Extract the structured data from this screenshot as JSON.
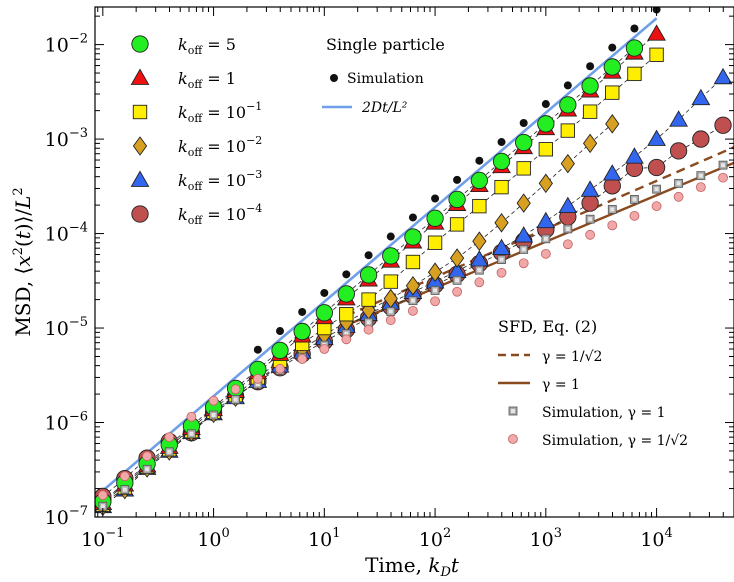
{
  "chart_data": {
    "type": "scatter",
    "title": "",
    "xlabel": "Time, k_D t",
    "ylabel": "MSD, ⟨x²(t)⟩/L²",
    "x_scale": "log",
    "y_scale": "log",
    "xlim": [
      0.085,
      50000
    ],
    "ylim": [
      1e-07,
      0.025
    ],
    "x_ticks": [
      {
        "value": 0.1,
        "base": "10",
        "exp": "−1"
      },
      {
        "value": 1,
        "base": "10",
        "exp": "0"
      },
      {
        "value": 10,
        "base": "10",
        "exp": "1"
      },
      {
        "value": 100,
        "base": "10",
        "exp": "2"
      },
      {
        "value": 1000,
        "base": "10",
        "exp": "3"
      },
      {
        "value": 10000,
        "base": "10",
        "exp": "4"
      }
    ],
    "y_ticks": [
      {
        "value": 1e-07,
        "base": "10",
        "exp": "−7"
      },
      {
        "value": 1e-06,
        "base": "10",
        "exp": "−6"
      },
      {
        "value": 1e-05,
        "base": "10",
        "exp": "−5"
      },
      {
        "value": 0.0001,
        "base": "10",
        "exp": "−4"
      },
      {
        "value": 0.001,
        "base": "10",
        "exp": "−3"
      },
      {
        "value": 0.01,
        "base": "10",
        "exp": "−2"
      }
    ],
    "koff_series": [
      {
        "name": "k_off = 5",
        "label_base": "k",
        "label_sub": "off",
        "label_rest": " = 5",
        "label_exp": "",
        "marker": "circle",
        "color": "#22ee22",
        "x": [
          0.1,
          0.158,
          0.251,
          0.398,
          0.631,
          1,
          1.58,
          2.51,
          3.98,
          6.31,
          10,
          15.8,
          25.1,
          39.8,
          63.1,
          100,
          158,
          251,
          398,
          631,
          1000,
          1580,
          2510,
          3980,
          6310
        ],
        "y": [
          1.45e-07,
          2.3e-07,
          3.65e-07,
          5.8e-07,
          9.2e-07,
          1.45e-06,
          2.3e-06,
          3.65e-06,
          5.8e-06,
          9.2e-06,
          1.45e-05,
          2.3e-05,
          3.65e-05,
          5.8e-05,
          9.2e-05,
          0.000145,
          0.00023,
          0.000365,
          0.00058,
          0.00092,
          0.00145,
          0.0023,
          0.00365,
          0.0058,
          0.0092
        ]
      },
      {
        "name": "k_off = 1",
        "label_base": "k",
        "label_sub": "off",
        "label_rest": " = 1",
        "label_exp": "",
        "marker": "triangle",
        "color": "#ee1111",
        "x": [
          0.1,
          0.158,
          0.251,
          0.398,
          0.631,
          1,
          1.58,
          2.51,
          3.98,
          6.31,
          10,
          15.8,
          25.1,
          39.8,
          63.1,
          100,
          158,
          251,
          398,
          631,
          1000,
          1580,
          2510,
          3980,
          6310,
          10000
        ],
        "y": [
          1.4e-07,
          2.2e-07,
          3.5e-07,
          5.5e-07,
          8.7e-07,
          1.38e-06,
          2.15e-06,
          3.4e-06,
          5.3e-06,
          8.3e-06,
          1.3e-05,
          2.05e-05,
          3.25e-05,
          5.15e-05,
          8.2e-05,
          0.00013,
          0.000205,
          0.000325,
          0.000515,
          0.00082,
          0.0013,
          0.00205,
          0.00325,
          0.00515,
          0.0082,
          0.013
        ]
      },
      {
        "name": "k_off = 10^-1",
        "label_base": "k",
        "label_sub": "off",
        "label_rest": " = 10",
        "label_exp": "−1",
        "marker": "square",
        "color": "#ffee00",
        "x": [
          0.1,
          0.158,
          0.251,
          0.398,
          0.631,
          1,
          1.58,
          2.51,
          3.98,
          6.31,
          10,
          15.8,
          25.1,
          39.8,
          63.1,
          100,
          158,
          251,
          398,
          631,
          1000,
          1580,
          2510,
          3980,
          6310,
          10000
        ],
        "y": [
          1.35e-07,
          2.05e-07,
          3.4e-07,
          5.2e-07,
          8.1e-07,
          1.3e-06,
          1.95e-06,
          3e-06,
          4.5e-06,
          6.8e-06,
          1e-05,
          1.4e-05,
          2e-05,
          3.1e-05,
          5e-05,
          8e-05,
          0.000125,
          0.000195,
          0.00031,
          0.00049,
          0.00078,
          0.00123,
          0.00195,
          0.0031,
          0.0049,
          0.0078
        ]
      },
      {
        "name": "k_off = 10^-2",
        "label_base": "k",
        "label_sub": "off",
        "label_rest": " = 10",
        "label_exp": "−2",
        "marker": "diamond",
        "color": "#d8a020",
        "x": [
          0.1,
          0.158,
          0.251,
          0.398,
          0.631,
          1,
          1.58,
          2.51,
          3.98,
          6.31,
          10,
          15.8,
          25.1,
          39.8,
          63.1,
          100,
          158,
          251,
          398,
          631,
          1000,
          1580,
          2510,
          3980
        ],
        "y": [
          1.3e-07,
          1.95e-07,
          3.3e-07,
          5e-07,
          7.9e-07,
          1.25e-06,
          1.85e-06,
          2.8e-06,
          4.2e-06,
          6e-06,
          8.5e-06,
          1.15e-05,
          1.55e-05,
          2.05e-05,
          2.8e-05,
          3.9e-05,
          5.5e-05,
          8.3e-05,
          0.00013,
          0.00021,
          0.00034,
          0.00055,
          0.0009,
          0.00145
        ]
      },
      {
        "name": "k_off = 10^-3",
        "label_base": "k",
        "label_sub": "off",
        "label_rest": " = 10",
        "label_exp": "−3",
        "marker": "triangle",
        "color": "#3366ee",
        "x": [
          0.1,
          0.158,
          0.251,
          0.398,
          0.631,
          1,
          1.58,
          2.51,
          3.98,
          6.31,
          10,
          15.8,
          25.1,
          39.8,
          63.1,
          100,
          158,
          251,
          398,
          631,
          1000,
          1580,
          2510,
          3980,
          6310,
          10000,
          15800,
          25100,
          39800
        ],
        "y": [
          1.3e-07,
          1.95e-07,
          3.3e-07,
          5e-07,
          7.9e-07,
          1.25e-06,
          1.85e-06,
          2.75e-06,
          4e-06,
          5.6e-06,
          7.8e-06,
          1.05e-05,
          1.4e-05,
          1.85e-05,
          2.4e-05,
          3.1e-05,
          4e-05,
          5.3e-05,
          7e-05,
          9.5e-05,
          0.000135,
          0.000195,
          0.00029,
          0.00043,
          0.00065,
          0.001,
          0.0016,
          0.0027,
          0.0045
        ]
      },
      {
        "name": "k_off = 10^-4",
        "label_base": "k",
        "label_sub": "off",
        "label_rest": " = 10",
        "label_exp": "−4",
        "marker": "circle",
        "color": "#c05050",
        "x": [
          0.1,
          0.158,
          0.251,
          0.398,
          0.631,
          1,
          1.58,
          2.51,
          3.98,
          6.31,
          10,
          15.8,
          25.1,
          39.8,
          63.1,
          100,
          158,
          251,
          398,
          631,
          1000,
          1580,
          2510,
          3980,
          6310,
          10000,
          15800,
          25100,
          39800
        ],
        "y": [
          1.65e-07,
          2.55e-07,
          4.2e-07,
          6.3e-07,
          7.8e-07,
          1.28e-06,
          1.9e-06,
          2.7e-06,
          3.8e-06,
          5.3e-06,
          7.2e-06,
          9.6e-06,
          1.27e-05,
          1.68e-05,
          2.2e-05,
          2.85e-05,
          3.7e-05,
          4.8e-05,
          6.3e-05,
          8.3e-05,
          0.00011,
          0.00015,
          0.00021,
          0.00032,
          0.00049,
          0.0005,
          0.00075,
          0.001,
          0.0014
        ]
      }
    ],
    "single_particle_simulation": {
      "name": "Simulation",
      "color": "#111111",
      "x": [
        2.51,
        3.98,
        6.31,
        10,
        15.8,
        25.1,
        39.8,
        63.1,
        100,
        158,
        251,
        398,
        631,
        1000,
        1580,
        2510,
        3980,
        6310,
        10000
      ],
      "y": [
        5.9e-06,
        9.3e-06,
        1.48e-05,
        2.35e-05,
        3.7e-05,
        5.9e-05,
        9.3e-05,
        0.000148,
        0.000235,
        0.00037,
        0.00059,
        0.00093,
        0.00148,
        0.00235,
        0.0037,
        0.0059,
        0.0093,
        0.0148,
        0.0235
      ]
    },
    "single_particle_line": {
      "name": "2Dt/L²",
      "color": "#6f9fe8",
      "x": [
        0.1,
        10000
      ],
      "y": [
        1.9e-07,
        0.019
      ]
    },
    "sfd_lines": [
      {
        "name": "γ = 1/√2",
        "style": "dashed",
        "color": "#8a4a20",
        "x": [
          15.8,
          50000
        ],
        "y": [
          1.35e-05,
          0.00082
        ]
      },
      {
        "name": "γ = 1",
        "style": "solid",
        "color": "#8a4a20",
        "x": [
          15.8,
          50000
        ],
        "y": [
          1.07e-05,
          0.00056
        ]
      }
    ],
    "sfd_simulation": [
      {
        "name": "Simulation, γ = 1",
        "marker": "small-square",
        "color": "#aaaaaa",
        "x": [
          0.1,
          0.158,
          0.251,
          0.398,
          0.631,
          1,
          1.58,
          2.51,
          3.98,
          6.31,
          10,
          15.8,
          25.1,
          39.8,
          63.1,
          100,
          158,
          251,
          398,
          631,
          1000,
          1580,
          2510,
          3980,
          6310,
          10000,
          15800,
          25100,
          39800
        ],
        "y": [
          1.3e-07,
          1.95e-07,
          3.2e-07,
          4.9e-07,
          7.6e-07,
          1.2e-06,
          1.75e-06,
          2.55e-06,
          3.55e-06,
          4.9e-06,
          6.6e-06,
          8.7e-06,
          1.15e-05,
          1.5e-05,
          1.95e-05,
          2.5e-05,
          3.2e-05,
          4.1e-05,
          5.3e-05,
          6.8e-05,
          8.8e-05,
          0.000112,
          0.000142,
          0.00018,
          0.00023,
          0.000295,
          0.00034,
          0.00041,
          0.00053
        ]
      },
      {
        "name": "Simulation, γ = 1/√2",
        "marker": "small-circle",
        "color": "#f0a8a8",
        "x": [
          0.1,
          0.158,
          0.251,
          0.398,
          0.631,
          1,
          1.58,
          2.51,
          3.98,
          6.31,
          10,
          15.8,
          25.1,
          39.8,
          63.1,
          100,
          158,
          251,
          398,
          631,
          1000,
          1580,
          2510,
          3980,
          6310,
          10000,
          15800,
          25100,
          39800
        ],
        "y": [
          1.7e-07,
          2.7e-07,
          4.4e-07,
          7e-07,
          1.15e-06,
          1.7e-06,
          2.25e-06,
          2.9e-06,
          3.7e-06,
          4.7e-06,
          6e-06,
          7.6e-06,
          9.6e-06,
          1.21e-05,
          1.52e-05,
          1.92e-05,
          2.42e-05,
          3.05e-05,
          3.85e-05,
          4.85e-05,
          6.1e-05,
          7.7e-05,
          9.7e-05,
          0.000122,
          0.000154,
          0.000195,
          0.000245,
          0.00031,
          0.00039
        ]
      }
    ],
    "legend": {
      "single_header": "Single particle",
      "single_sim_label": "Simulation",
      "single_line_label": "2Dt/L²",
      "sfd_header": "SFD, Eq. (2)",
      "sfd_dashed_label": "γ = 1/√2",
      "sfd_solid_label": "γ = 1",
      "sfd_sim1_label": "Simulation, γ = 1",
      "sfd_sim2_label": "Simulation, γ = 1/√2"
    },
    "grid": false,
    "legend_placement": [
      "top-left",
      "top-center",
      "bottom-right"
    ]
  }
}
